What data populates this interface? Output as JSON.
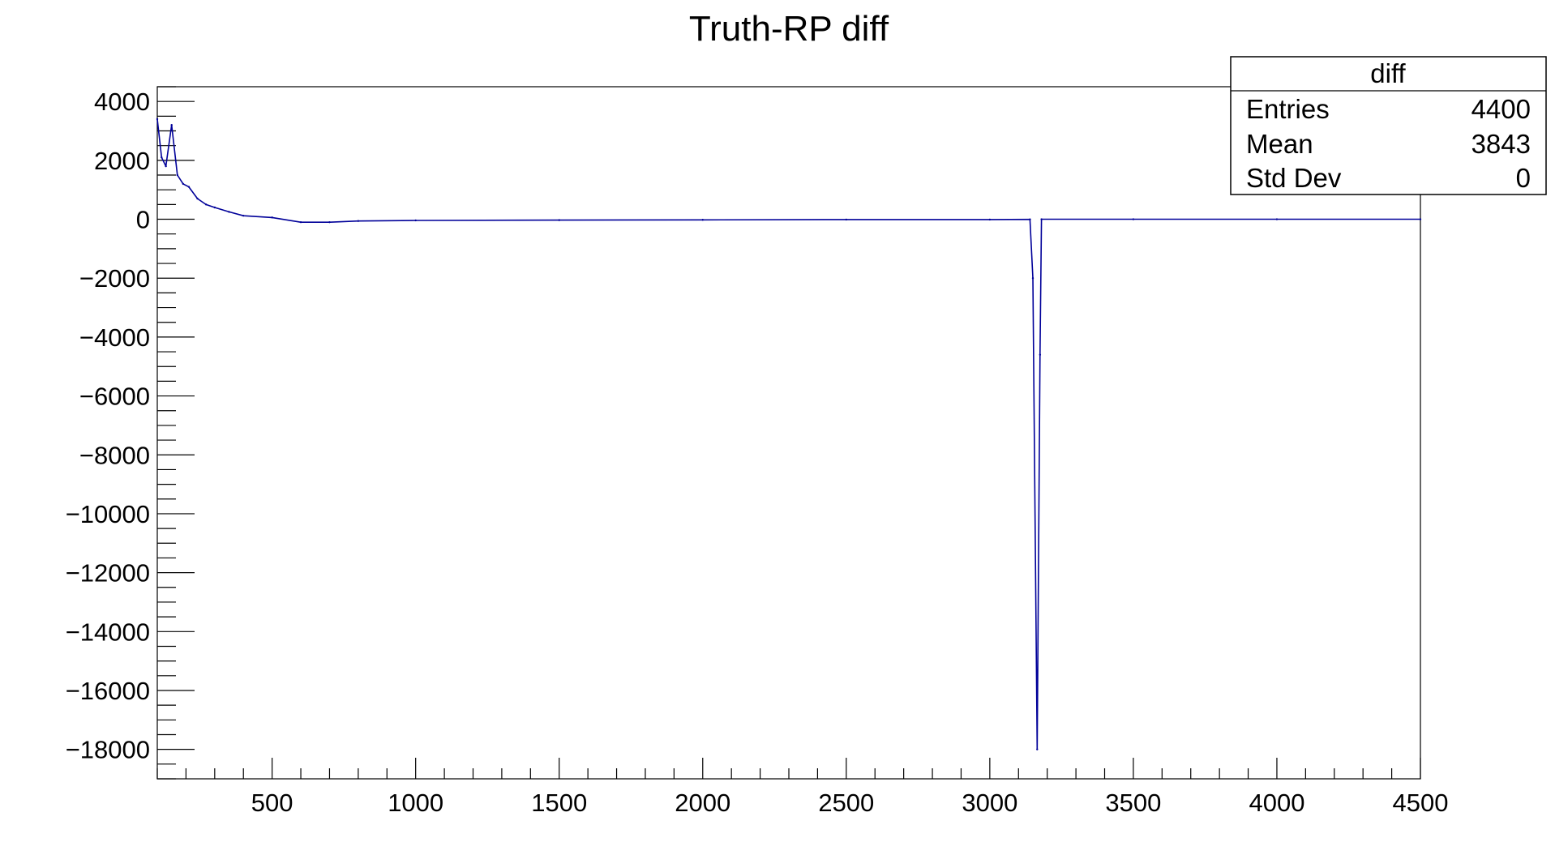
{
  "chart_data": {
    "type": "line",
    "title": "Truth-RP diff",
    "xlabel": "",
    "ylabel": "",
    "xlim": [
      100,
      4500
    ],
    "ylim": [
      -19000,
      4500
    ],
    "x_ticks": [
      500,
      1000,
      1500,
      2000,
      2500,
      3000,
      3500,
      4000,
      4500
    ],
    "y_ticks": [
      4000,
      2000,
      0,
      -2000,
      -4000,
      -6000,
      -8000,
      -10000,
      -12000,
      -14000,
      -16000,
      -18000
    ],
    "x_tick_labels": [
      "500",
      "1000",
      "1500",
      "2000",
      "2500",
      "3000",
      "3500",
      "4000",
      "4500"
    ],
    "y_tick_labels": [
      "4000",
      "2000",
      "0",
      "−2000",
      "−4000",
      "−6000",
      "−8000",
      "−10000",
      "−12000",
      "−14000",
      "−16000",
      "−18000"
    ],
    "grid": false,
    "line_color": "#000099",
    "series": [
      {
        "points": [
          [
            100,
            3400
          ],
          [
            115,
            2100
          ],
          [
            130,
            1800
          ],
          [
            150,
            3200
          ],
          [
            170,
            1500
          ],
          [
            190,
            1200
          ],
          [
            210,
            1100
          ],
          [
            240,
            700
          ],
          [
            270,
            500
          ],
          [
            300,
            400
          ],
          [
            350,
            250
          ],
          [
            400,
            120
          ],
          [
            500,
            60
          ],
          [
            600,
            -100
          ],
          [
            700,
            -100
          ],
          [
            800,
            -60
          ],
          [
            1000,
            -40
          ],
          [
            1500,
            -30
          ],
          [
            2000,
            -20
          ],
          [
            2500,
            -10
          ],
          [
            3000,
            -10
          ],
          [
            3140,
            -5
          ],
          [
            3150,
            -2000
          ],
          [
            3165,
            -18000
          ],
          [
            3175,
            -4600
          ],
          [
            3180,
            0
          ],
          [
            3500,
            0
          ],
          [
            4000,
            0
          ],
          [
            4500,
            0
          ]
        ]
      }
    ]
  },
  "stats_box": {
    "title": "diff",
    "rows": [
      {
        "label": "Entries",
        "value": "4400"
      },
      {
        "label": "Mean",
        "value": "3843"
      },
      {
        "label": "Std Dev",
        "value": "0"
      }
    ]
  }
}
